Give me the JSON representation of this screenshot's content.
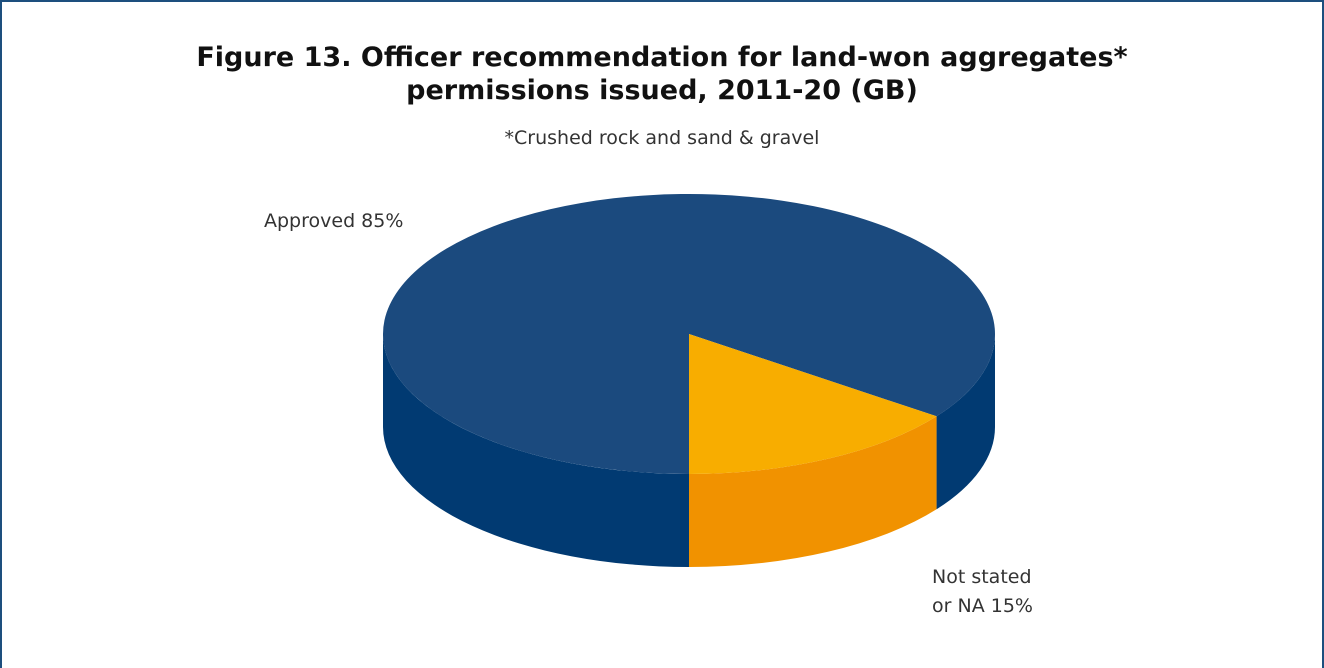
{
  "chart_data": {
    "type": "pie",
    "title": "Figure 13. Officer recommendation for land-won aggregates* permissions issued, 2011-20 (GB)",
    "title_lines": [
      "Figure 13. Officer recommendation for land-won aggregates*",
      "permissions issued, 2011-20 (GB)"
    ],
    "subtitle": "*Crushed rock and sand & gravel",
    "style": "3d",
    "slices": [
      {
        "label": "Approved 85%",
        "label_lines": [
          "Approved 85%"
        ],
        "value": 85,
        "color": "#1b4a7e",
        "side_color": "#013a72"
      },
      {
        "label": "Not stated or NA 15%",
        "label_lines": [
          "Not stated",
          "or NA 15%"
        ],
        "value": 15,
        "color": "#f8ad00",
        "side_color": "#f19200"
      }
    ],
    "frame_color": "#1d4f7e"
  }
}
